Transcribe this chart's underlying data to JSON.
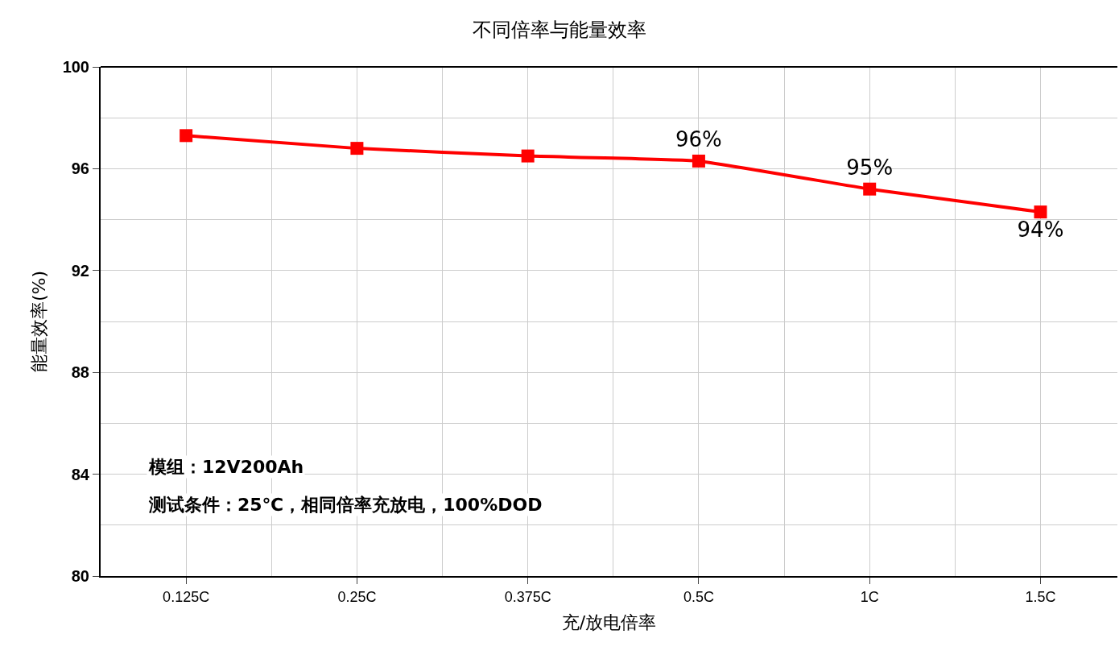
{
  "chart_data": {
    "type": "line",
    "title": "不同倍率与能量效率",
    "xlabel": "充/放电倍率",
    "ylabel": "能量效率(%)",
    "categories": [
      "0.125C",
      "0.25C",
      "0.375C",
      "0.5C",
      "1C",
      "1.5C"
    ],
    "series": [
      {
        "color": "#ff0000",
        "values": [
          97.3,
          96.8,
          96.5,
          96.3,
          95.2,
          94.3
        ],
        "value_labels": [
          null,
          null,
          null,
          "96%",
          "95%",
          "94%"
        ]
      }
    ],
    "ylim": [
      80,
      100
    ],
    "yticks": [
      80,
      84,
      88,
      92,
      96,
      100
    ],
    "grid": true,
    "marker": "square",
    "line_style": "solid",
    "legend": false,
    "annotations": [
      "模组：12V200Ah",
      "测试条件：25℃，相同倍率充放电，100%DOD"
    ]
  }
}
